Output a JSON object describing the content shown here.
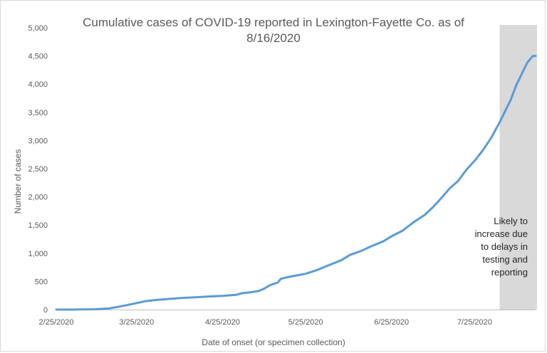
{
  "chart_data": {
    "type": "line",
    "title_lines": [
      "Cumulative cases of COVID-19 reported in Lexington-Fayette Co.  as of",
      "8/16/2020"
    ],
    "xlabel": "Date of onset (or specimen collection)",
    "ylabel": "Number of cases",
    "x_start": "2020-02-25",
    "x_end": "2020-08-16",
    "xticks": [
      {
        "date": "2020-02-25",
        "label": "2/25/2020"
      },
      {
        "date": "2020-03-25",
        "label": "3/25/2020"
      },
      {
        "date": "2020-04-25",
        "label": "4/25/2020"
      },
      {
        "date": "2020-05-25",
        "label": "5/25/2020"
      },
      {
        "date": "2020-06-25",
        "label": "6/25/2020"
      },
      {
        "date": "2020-07-25",
        "label": "7/25/2020"
      }
    ],
    "ylim": [
      0,
      5000
    ],
    "yticks": [
      {
        "value": 0,
        "label": "0"
      },
      {
        "value": 500,
        "label": "500"
      },
      {
        "value": 1000,
        "label": "1,000"
      },
      {
        "value": 1500,
        "label": "1,500"
      },
      {
        "value": 2000,
        "label": "2,000"
      },
      {
        "value": 2500,
        "label": "2,500"
      },
      {
        "value": 3000,
        "label": "3,000"
      },
      {
        "value": 3500,
        "label": "3,500"
      },
      {
        "value": 4000,
        "label": "4,000"
      },
      {
        "value": 4500,
        "label": "4,500"
      },
      {
        "value": 5000,
        "label": "5,000"
      }
    ],
    "grid": false,
    "series": [
      {
        "color": "#5b9bd5",
        "points": [
          {
            "x": "2020-02-25",
            "y": 0
          },
          {
            "x": "2020-03-01",
            "y": 0
          },
          {
            "x": "2020-03-05",
            "y": 2
          },
          {
            "x": "2020-03-10",
            "y": 6
          },
          {
            "x": "2020-03-15",
            "y": 20
          },
          {
            "x": "2020-03-18",
            "y": 45
          },
          {
            "x": "2020-03-22",
            "y": 85
          },
          {
            "x": "2020-03-25",
            "y": 115
          },
          {
            "x": "2020-03-28",
            "y": 148
          },
          {
            "x": "2020-04-01",
            "y": 170
          },
          {
            "x": "2020-04-05",
            "y": 185
          },
          {
            "x": "2020-04-10",
            "y": 205
          },
          {
            "x": "2020-04-15",
            "y": 218
          },
          {
            "x": "2020-04-20",
            "y": 232
          },
          {
            "x": "2020-04-25",
            "y": 243
          },
          {
            "x": "2020-04-30",
            "y": 262
          },
          {
            "x": "2020-05-02",
            "y": 290
          },
          {
            "x": "2020-05-05",
            "y": 305
          },
          {
            "x": "2020-05-08",
            "y": 330
          },
          {
            "x": "2020-05-10",
            "y": 370
          },
          {
            "x": "2020-05-12",
            "y": 430
          },
          {
            "x": "2020-05-14",
            "y": 465
          },
          {
            "x": "2020-05-15",
            "y": 480
          },
          {
            "x": "2020-05-16",
            "y": 545
          },
          {
            "x": "2020-05-18",
            "y": 570
          },
          {
            "x": "2020-05-21",
            "y": 600
          },
          {
            "x": "2020-05-25",
            "y": 635
          },
          {
            "x": "2020-05-29",
            "y": 700
          },
          {
            "x": "2020-06-01",
            "y": 760
          },
          {
            "x": "2020-06-04",
            "y": 820
          },
          {
            "x": "2020-06-07",
            "y": 880
          },
          {
            "x": "2020-06-10",
            "y": 970
          },
          {
            "x": "2020-06-14",
            "y": 1040
          },
          {
            "x": "2020-06-18",
            "y": 1130
          },
          {
            "x": "2020-06-22",
            "y": 1210
          },
          {
            "x": "2020-06-25",
            "y": 1300
          },
          {
            "x": "2020-06-29",
            "y": 1400
          },
          {
            "x": "2020-07-03",
            "y": 1550
          },
          {
            "x": "2020-07-07",
            "y": 1680
          },
          {
            "x": "2020-07-10",
            "y": 1820
          },
          {
            "x": "2020-07-13",
            "y": 1980
          },
          {
            "x": "2020-07-16",
            "y": 2150
          },
          {
            "x": "2020-07-19",
            "y": 2280
          },
          {
            "x": "2020-07-22",
            "y": 2480
          },
          {
            "x": "2020-07-25",
            "y": 2640
          },
          {
            "x": "2020-07-28",
            "y": 2830
          },
          {
            "x": "2020-07-31",
            "y": 3050
          },
          {
            "x": "2020-08-03",
            "y": 3320
          },
          {
            "x": "2020-08-05",
            "y": 3520
          },
          {
            "x": "2020-08-07",
            "y": 3720
          },
          {
            "x": "2020-08-09",
            "y": 3980
          },
          {
            "x": "2020-08-11",
            "y": 4180
          },
          {
            "x": "2020-08-13",
            "y": 4380
          },
          {
            "x": "2020-08-15",
            "y": 4500
          },
          {
            "x": "2020-08-16",
            "y": 4500
          }
        ]
      }
    ],
    "shaded_region": {
      "x_start": "2020-08-03",
      "x_end": "2020-08-16",
      "color": "#d9d9d9",
      "annotation_lines": [
        "Likely to",
        "increase due",
        "to delays in",
        "testing and",
        "reporting"
      ]
    }
  }
}
